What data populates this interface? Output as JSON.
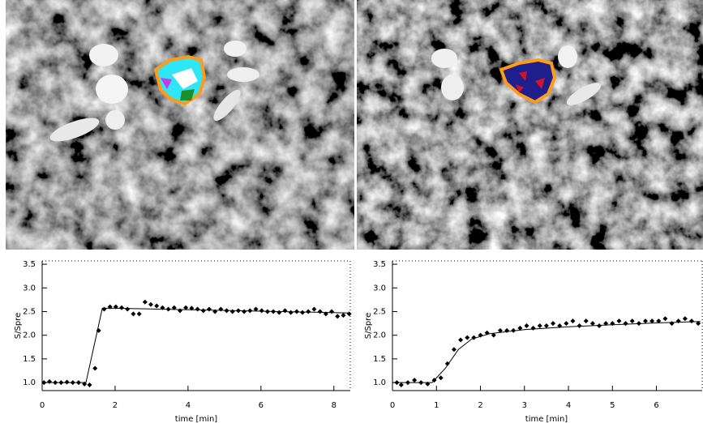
{
  "chart_data": [
    {
      "type": "scatter",
      "y_label": "S/Spre",
      "x_label": "time [min]",
      "color": "#000000",
      "xlim": [
        0,
        8.45
      ],
      "xticks": [
        0,
        2,
        4,
        6,
        8
      ],
      "ylim": [
        0.83,
        3.57
      ],
      "yticks": [
        {
          "value": 1.0,
          "label": "1.0"
        },
        {
          "value": 1.5,
          "label": "1.5"
        },
        {
          "value": 2.0,
          "label": "2.0"
        },
        {
          "value": 2.5,
          "label": "2.5"
        },
        {
          "value": 3.0,
          "label": "3.0"
        },
        {
          "value": 3.5,
          "label": "3.5"
        }
      ],
      "x": [
        0.05,
        0.2,
        0.36,
        0.52,
        0.68,
        0.84,
        1.0,
        1.16,
        1.3,
        1.45,
        1.55,
        1.7,
        1.86,
        2.02,
        2.18,
        2.34,
        2.5,
        2.66,
        2.82,
        2.98,
        3.14,
        3.3,
        3.46,
        3.62,
        3.78,
        3.94,
        4.1,
        4.26,
        4.42,
        4.58,
        4.74,
        4.9,
        5.06,
        5.22,
        5.38,
        5.54,
        5.7,
        5.86,
        6.02,
        6.18,
        6.34,
        6.5,
        6.66,
        6.82,
        6.98,
        7.14,
        7.3,
        7.46,
        7.62,
        7.78,
        7.94,
        8.1,
        8.26,
        8.42
      ],
      "values": [
        1.0,
        1.02,
        1.0,
        1.0,
        1.01,
        1.0,
        1.0,
        0.97,
        0.95,
        1.3,
        2.1,
        2.55,
        2.6,
        2.6,
        2.58,
        2.55,
        2.45,
        2.45,
        2.7,
        2.65,
        2.62,
        2.58,
        2.55,
        2.58,
        2.52,
        2.58,
        2.57,
        2.55,
        2.52,
        2.55,
        2.5,
        2.55,
        2.52,
        2.5,
        2.52,
        2.5,
        2.52,
        2.55,
        2.52,
        2.5,
        2.5,
        2.48,
        2.52,
        2.48,
        2.5,
        2.48,
        2.5,
        2.55,
        2.5,
        2.45,
        2.5,
        2.4,
        2.42,
        2.45
      ],
      "fit": {
        "x": [
          0,
          1.2,
          1.65,
          2.0,
          8.45
        ],
        "values": [
          1.0,
          1.0,
          2.57,
          2.57,
          2.47
        ]
      }
    },
    {
      "type": "scatter",
      "y_label": "S/Spre",
      "x_label": "time [min]",
      "color": "#000000",
      "xlim": [
        0,
        7.04
      ],
      "xticks": [
        0,
        1,
        2,
        3,
        4,
        5,
        6
      ],
      "ylim": [
        0.83,
        3.57
      ],
      "yticks": [
        {
          "value": 1.0,
          "label": "1.0"
        },
        {
          "value": 1.5,
          "label": "1.5"
        },
        {
          "value": 2.0,
          "label": "2.0"
        },
        {
          "value": 2.5,
          "label": "2.5"
        },
        {
          "value": 3.0,
          "label": "3.0"
        },
        {
          "value": 3.5,
          "label": "3.5"
        }
      ],
      "x": [
        0.1,
        0.2,
        0.35,
        0.5,
        0.65,
        0.8,
        0.95,
        1.1,
        1.25,
        1.4,
        1.55,
        1.7,
        1.85,
        2.0,
        2.15,
        2.3,
        2.45,
        2.6,
        2.75,
        2.9,
        3.05,
        3.2,
        3.35,
        3.5,
        3.65,
        3.8,
        3.95,
        4.1,
        4.25,
        4.4,
        4.55,
        4.7,
        4.85,
        5.0,
        5.15,
        5.3,
        5.45,
        5.6,
        5.75,
        5.9,
        6.05,
        6.2,
        6.35,
        6.5,
        6.65,
        6.8,
        6.95
      ],
      "values": [
        1.0,
        0.95,
        1.0,
        1.05,
        1.0,
        0.97,
        1.05,
        1.1,
        1.4,
        1.7,
        1.9,
        1.95,
        1.95,
        2.0,
        2.05,
        2.0,
        2.1,
        2.1,
        2.1,
        2.15,
        2.2,
        2.15,
        2.2,
        2.2,
        2.25,
        2.2,
        2.25,
        2.3,
        2.2,
        2.3,
        2.25,
        2.2,
        2.25,
        2.25,
        2.3,
        2.25,
        2.3,
        2.25,
        2.3,
        2.3,
        2.3,
        2.35,
        2.25,
        2.3,
        2.35,
        2.3,
        2.25
      ],
      "fit": {
        "x": [
          0,
          0.9,
          1.2,
          1.5,
          1.8,
          2.2,
          3.0,
          4.0,
          5.0,
          6.0,
          7.0
        ],
        "values": [
          1.0,
          1.0,
          1.3,
          1.7,
          1.92,
          2.03,
          2.12,
          2.18,
          2.22,
          2.26,
          2.29
        ]
      }
    }
  ]
}
